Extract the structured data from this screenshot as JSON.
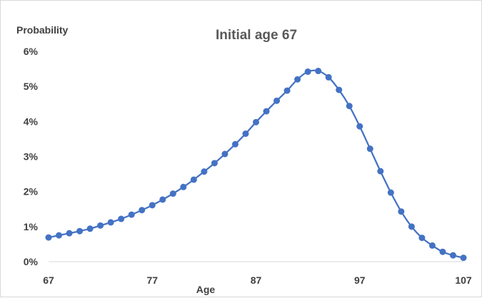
{
  "chart_data": {
    "type": "line",
    "title": "Initial age 67",
    "xlabel": "Age",
    "ylabel": "Probability",
    "xlim": [
      67,
      107
    ],
    "ylim": [
      0,
      6
    ],
    "x_ticks": [
      "67",
      "77",
      "87",
      "97",
      "107"
    ],
    "x_tick_values": [
      67,
      77,
      87,
      97,
      107
    ],
    "y_ticks": [
      "0%",
      "1%",
      "2%",
      "3%",
      "4%",
      "5%",
      "6%"
    ],
    "y_tick_values": [
      0,
      1,
      2,
      3,
      4,
      5,
      6
    ],
    "grid": false,
    "legend": "none",
    "series": [
      {
        "color": "#4472c4",
        "x": [
          67,
          68,
          69,
          70,
          71,
          72,
          73,
          74,
          75,
          76,
          77,
          78,
          79,
          80,
          81,
          82,
          83,
          84,
          85,
          86,
          87,
          88,
          89,
          90,
          91,
          92,
          93,
          94,
          95,
          96,
          97,
          98,
          99,
          100,
          101,
          102,
          103,
          104,
          105,
          106,
          107
        ],
        "values": [
          0.69,
          0.75,
          0.81,
          0.87,
          0.94,
          1.03,
          1.12,
          1.22,
          1.34,
          1.47,
          1.61,
          1.77,
          1.94,
          2.13,
          2.34,
          2.57,
          2.81,
          3.07,
          3.35,
          3.65,
          3.98,
          4.29,
          4.59,
          4.88,
          5.2,
          5.42,
          5.44,
          5.26,
          4.9,
          4.44,
          3.86,
          3.22,
          2.58,
          1.97,
          1.43,
          1.0,
          0.68,
          0.46,
          0.28,
          0.18,
          0.11
        ]
      }
    ]
  }
}
